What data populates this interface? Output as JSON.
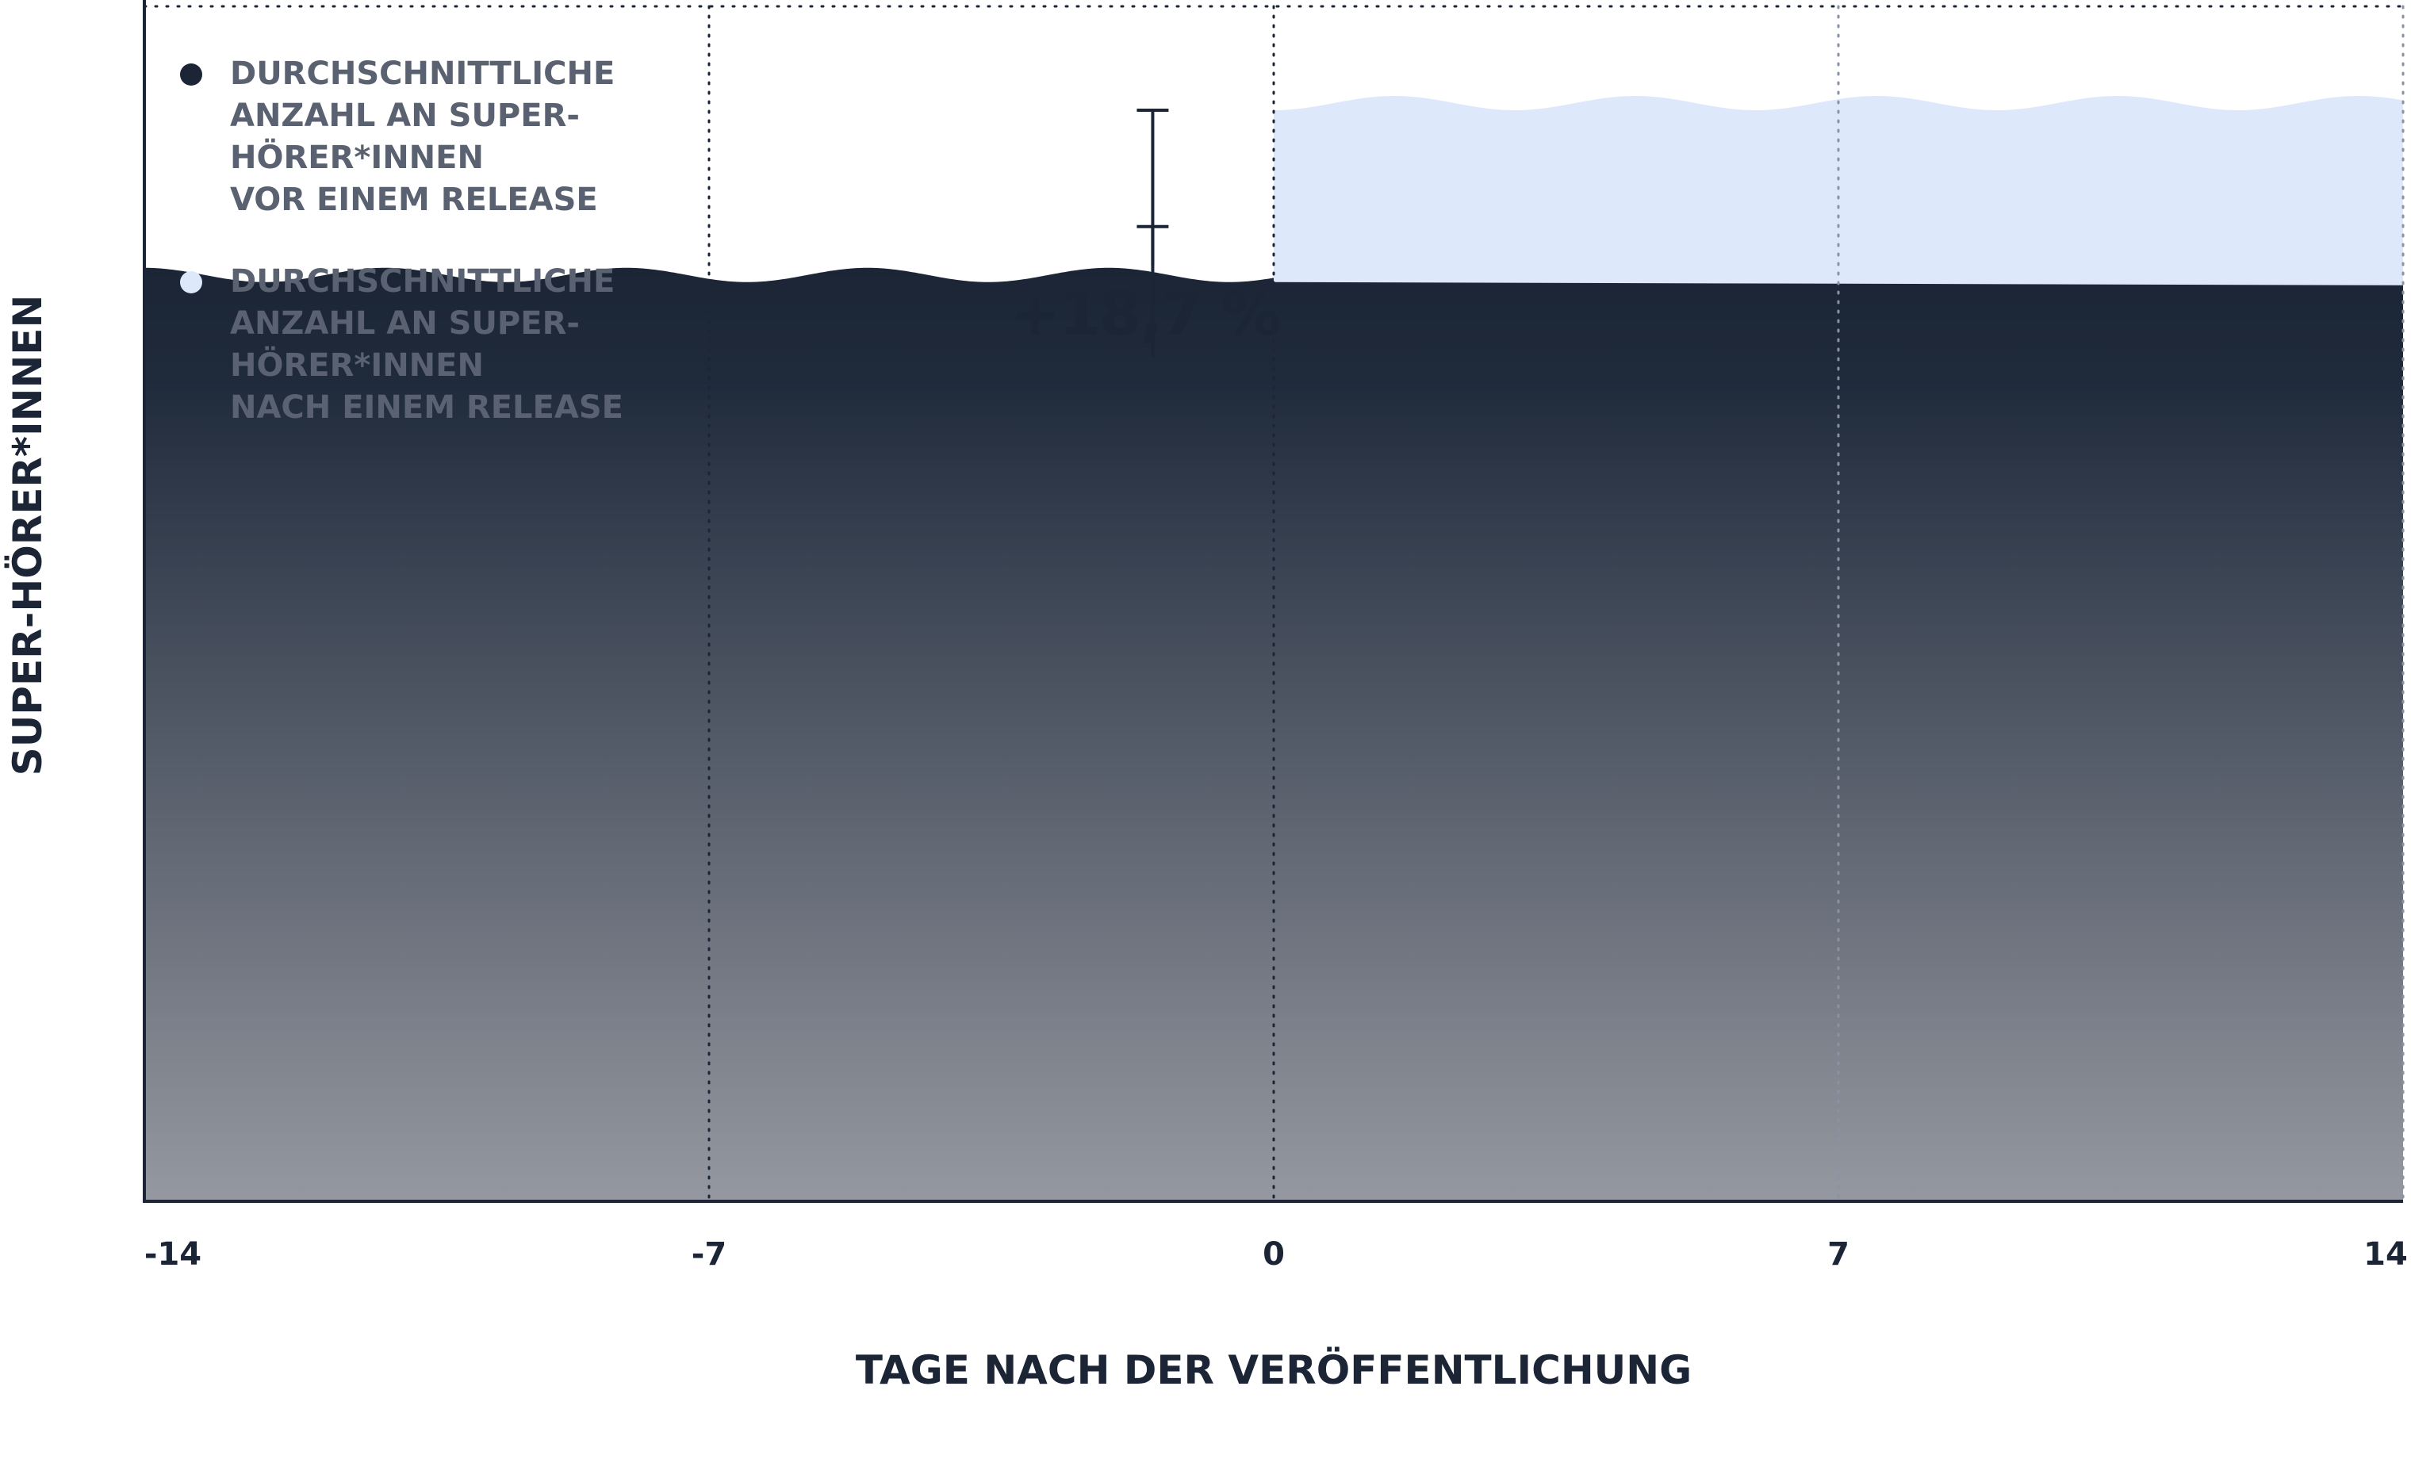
{
  "chart_data": {
    "type": "area",
    "title": "",
    "xlabel": "TAGE NACH DER VERÖFFENTLICHUNG",
    "ylabel": "SUPER-HÖRER*INNEN",
    "x_ticks": [
      -14,
      -7,
      0,
      7,
      14
    ],
    "xlim": [
      -14,
      14
    ],
    "ylim": [
      0,
      1.3
    ],
    "grid": "vertical dotted",
    "legend_position": "top-left",
    "series": [
      {
        "name": "DURCHSCHNITTLICHE ANZAHL AN SUPER-HÖRER*INNEN VOR EINEM RELEASE",
        "legend_lines": [
          "DURCHSCHNITTLICHE",
          "ANZAHL AN SUPER-",
          "HÖRER*INNEN",
          "VOR EINEM RELEASE"
        ],
        "color": "#1b2535",
        "x": [
          -14,
          0,
          14
        ],
        "y": [
          1.0,
          1.0,
          1.0
        ]
      },
      {
        "name": "DURCHSCHNITTLICHE ANZAHL AN SUPER-HÖRER*INNEN NACH EINEM RELEASE",
        "legend_lines": [
          "DURCHSCHNITTLICHE",
          "ANZAHL AN SUPER-",
          "HÖRER*INNEN",
          "NACH EINEM RELEASE"
        ],
        "color": "#dde9fb",
        "x": [
          0,
          14
        ],
        "y": [
          1.187,
          1.187
        ]
      }
    ],
    "annotations": [
      {
        "text": "+18,7 %",
        "x": -1.5,
        "from": 1.0,
        "to": 1.187
      }
    ]
  }
}
